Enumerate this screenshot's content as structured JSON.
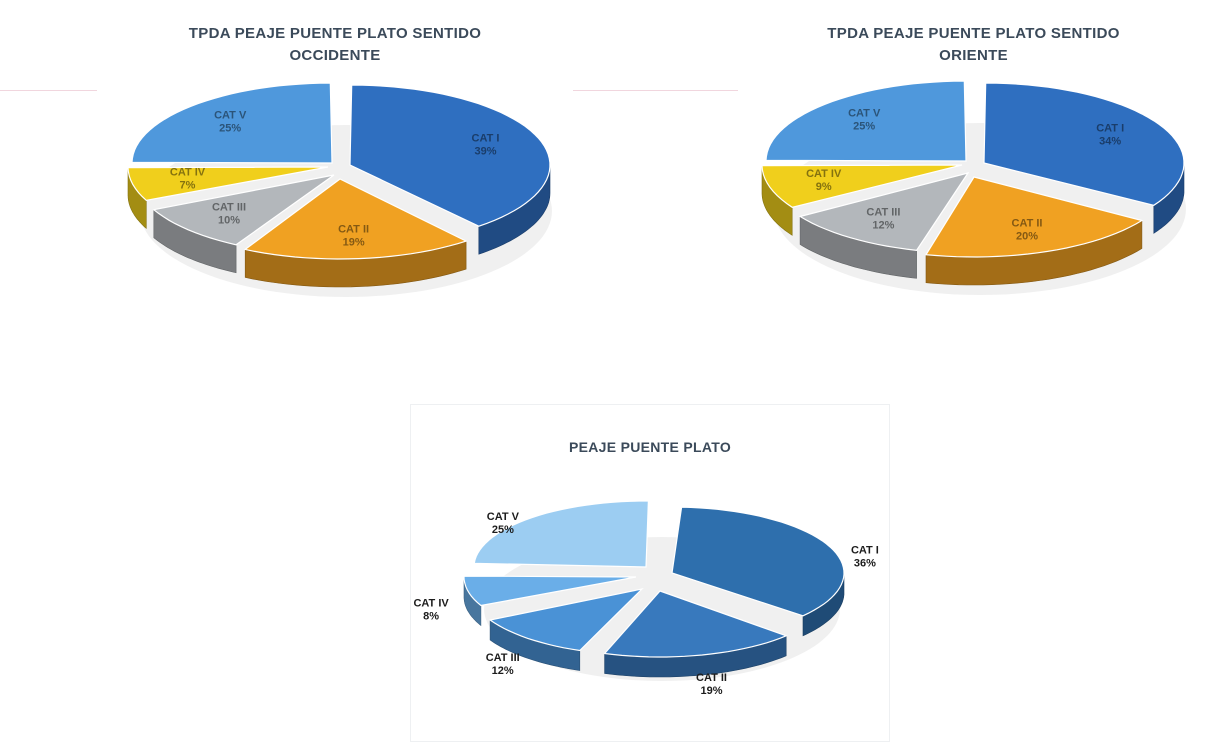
{
  "chart_data": [
    {
      "type": "pie",
      "title_line1": "TPDA PEAJE PUENTE PLATO SENTIDO",
      "title_line2": "OCCIDENTE",
      "slices": [
        {
          "label": "CAT I",
          "value": 39,
          "text": "39%",
          "color": "#2f6fc0"
        },
        {
          "label": "CAT II",
          "value": 19,
          "text": "19%",
          "color": "#f0a122"
        },
        {
          "label": "CAT III",
          "value": 10,
          "text": "10%",
          "color": "#b3b7bb"
        },
        {
          "label": "CAT IV",
          "value": 7,
          "text": "7%",
          "color": "#f0cf1c"
        },
        {
          "label": "CAT V",
          "value": 25,
          "text": "25%",
          "color": "#4f98dc"
        }
      ]
    },
    {
      "type": "pie",
      "title_line1": "TPDA PEAJE PUENTE PLATO SENTIDO",
      "title_line2": "ORIENTE",
      "slices": [
        {
          "label": "CAT I",
          "value": 34,
          "text": "34%",
          "color": "#2f6fc0"
        },
        {
          "label": "CAT II",
          "value": 20,
          "text": "20%",
          "color": "#f0a122"
        },
        {
          "label": "CAT III",
          "value": 12,
          "text": "12%",
          "color": "#b3b7bb"
        },
        {
          "label": "CAT IV",
          "value": 9,
          "text": "9%",
          "color": "#f0cf1c"
        },
        {
          "label": "CAT V",
          "value": 25,
          "text": "25%",
          "color": "#4f98dc"
        }
      ]
    },
    {
      "type": "pie",
      "title_line1": "PEAJE PUENTE PLATO",
      "title_line2": "",
      "slices": [
        {
          "label": "CAT I",
          "value": 36,
          "text": "36%",
          "color": "#2e6fad"
        },
        {
          "label": "CAT II",
          "value": 19,
          "text": "19%",
          "color": "#3879bd"
        },
        {
          "label": "CAT III",
          "value": 12,
          "text": "12%",
          "color": "#4a92d6"
        },
        {
          "label": "CAT IV",
          "value": 8,
          "text": "8%",
          "color": "#6aaee8"
        },
        {
          "label": "CAT V",
          "value": 25,
          "text": "25%",
          "color": "#9ccdf2"
        }
      ]
    }
  ]
}
